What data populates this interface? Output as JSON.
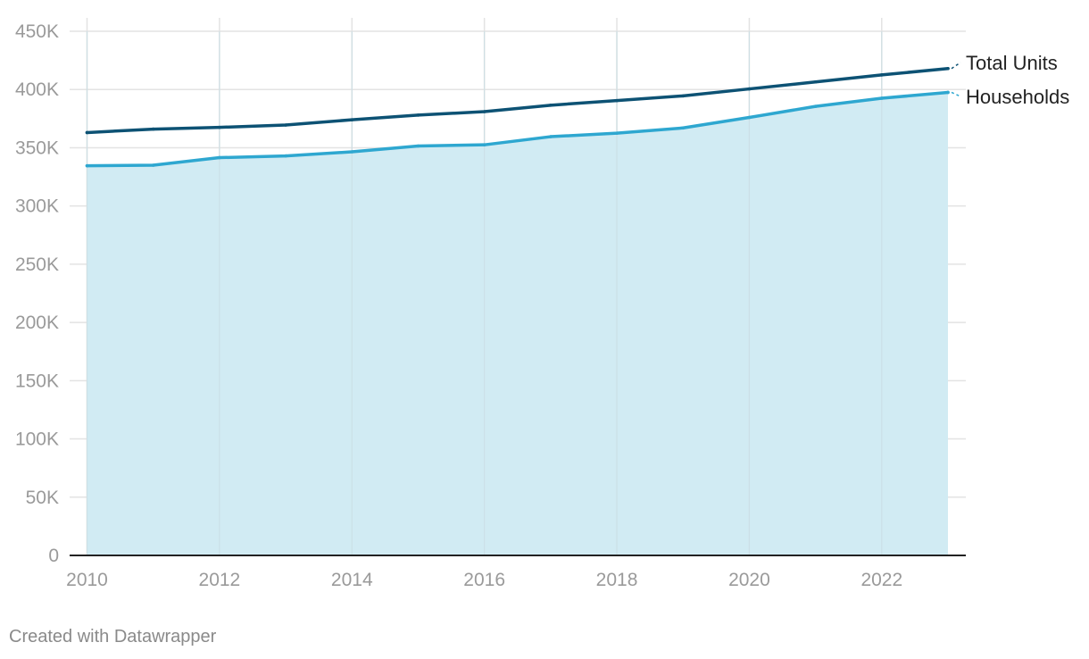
{
  "chart_data": {
    "type": "area",
    "x": [
      2010,
      2011,
      2012,
      2013,
      2014,
      2015,
      2016,
      2017,
      2018,
      2019,
      2020,
      2021,
      2022,
      2023
    ],
    "series": [
      {
        "name": "Total Units",
        "values": [
          363000,
          366000,
          367500,
          369500,
          374000,
          378000,
          381000,
          386500,
          390500,
          394500,
          400500,
          406500,
          412500,
          418000
        ],
        "color": "#0d5274",
        "fill": false
      },
      {
        "name": "Households",
        "values": [
          334500,
          335000,
          341500,
          343000,
          346500,
          351500,
          352500,
          359500,
          362500,
          367000,
          376000,
          385500,
          392500,
          397500
        ],
        "color": "#2ea7d0",
        "fill": true,
        "fill_color": "#d1ebf3"
      }
    ],
    "ylim": [
      0,
      450000
    ],
    "yticks": [
      0,
      50000,
      100000,
      150000,
      200000,
      250000,
      300000,
      350000,
      400000,
      450000
    ],
    "ytick_labels": [
      "0",
      "50K",
      "100K",
      "150K",
      "200K",
      "250K",
      "300K",
      "350K",
      "400K",
      "450K"
    ],
    "xticks": [
      2010,
      2012,
      2014,
      2016,
      2018,
      2020,
      2022
    ],
    "xtick_labels": [
      "2010",
      "2012",
      "2014",
      "2016",
      "2018",
      "2020",
      "2022"
    ],
    "grid": true,
    "legend": "direct labels at line ends (right)"
  },
  "footer": {
    "credit": "Created with Datawrapper"
  }
}
